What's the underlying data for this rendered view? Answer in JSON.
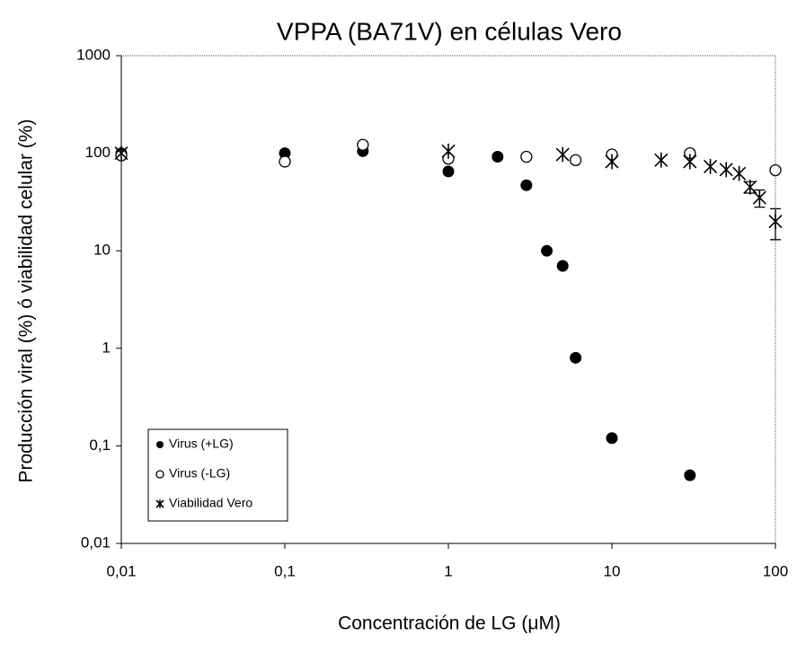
{
  "chart_data": {
    "type": "scatter",
    "title": "VPPA (BA71V) en células Vero",
    "xlabel": "Concentración de LG (μM)",
    "ylabel": "Producción viral (%) ó viabilidad celular (%)",
    "xscale": "log",
    "yscale": "log",
    "xlim": [
      0.01,
      100
    ],
    "ylim": [
      0.01,
      1000
    ],
    "xticks": [
      {
        "value": 0.01,
        "label": "0,01"
      },
      {
        "value": 0.1,
        "label": "0,1"
      },
      1,
      10,
      100
    ],
    "yticks": [
      {
        "value": 0.01,
        "label": "0,01"
      },
      {
        "value": 0.1,
        "label": "0,1"
      },
      1,
      10,
      100,
      1000
    ],
    "grid": false,
    "legend": "lower left",
    "series": [
      {
        "name": "Virus (+LG)",
        "color": "#000000",
        "marker": "filled-circle",
        "x": [
          0.01,
          0.1,
          0.3,
          1,
          2,
          3,
          4,
          5,
          6,
          10,
          30
        ],
        "values": [
          100,
          100,
          105,
          65,
          92,
          47,
          10,
          7,
          0.8,
          0.12,
          0.05
        ]
      },
      {
        "name": "Virus (-LG)",
        "color": "#000000",
        "marker": "open-circle",
        "x": [
          0.01,
          0.1,
          0.3,
          1,
          3,
          6,
          10,
          30,
          100
        ],
        "values": [
          95,
          82,
          122,
          88,
          92,
          85,
          97,
          100,
          67
        ]
      },
      {
        "name": "Viabilidad Vero",
        "color": "#000000",
        "marker": "asterisk",
        "x": [
          0.01,
          1,
          5,
          10,
          20,
          30,
          40,
          50,
          60,
          70,
          80,
          100
        ],
        "values": [
          100,
          105,
          97,
          82,
          85,
          82,
          73,
          68,
          62,
          45,
          35,
          20
        ],
        "errors": [
          null,
          null,
          null,
          null,
          null,
          null,
          null,
          null,
          null,
          6,
          7,
          7
        ]
      }
    ]
  }
}
